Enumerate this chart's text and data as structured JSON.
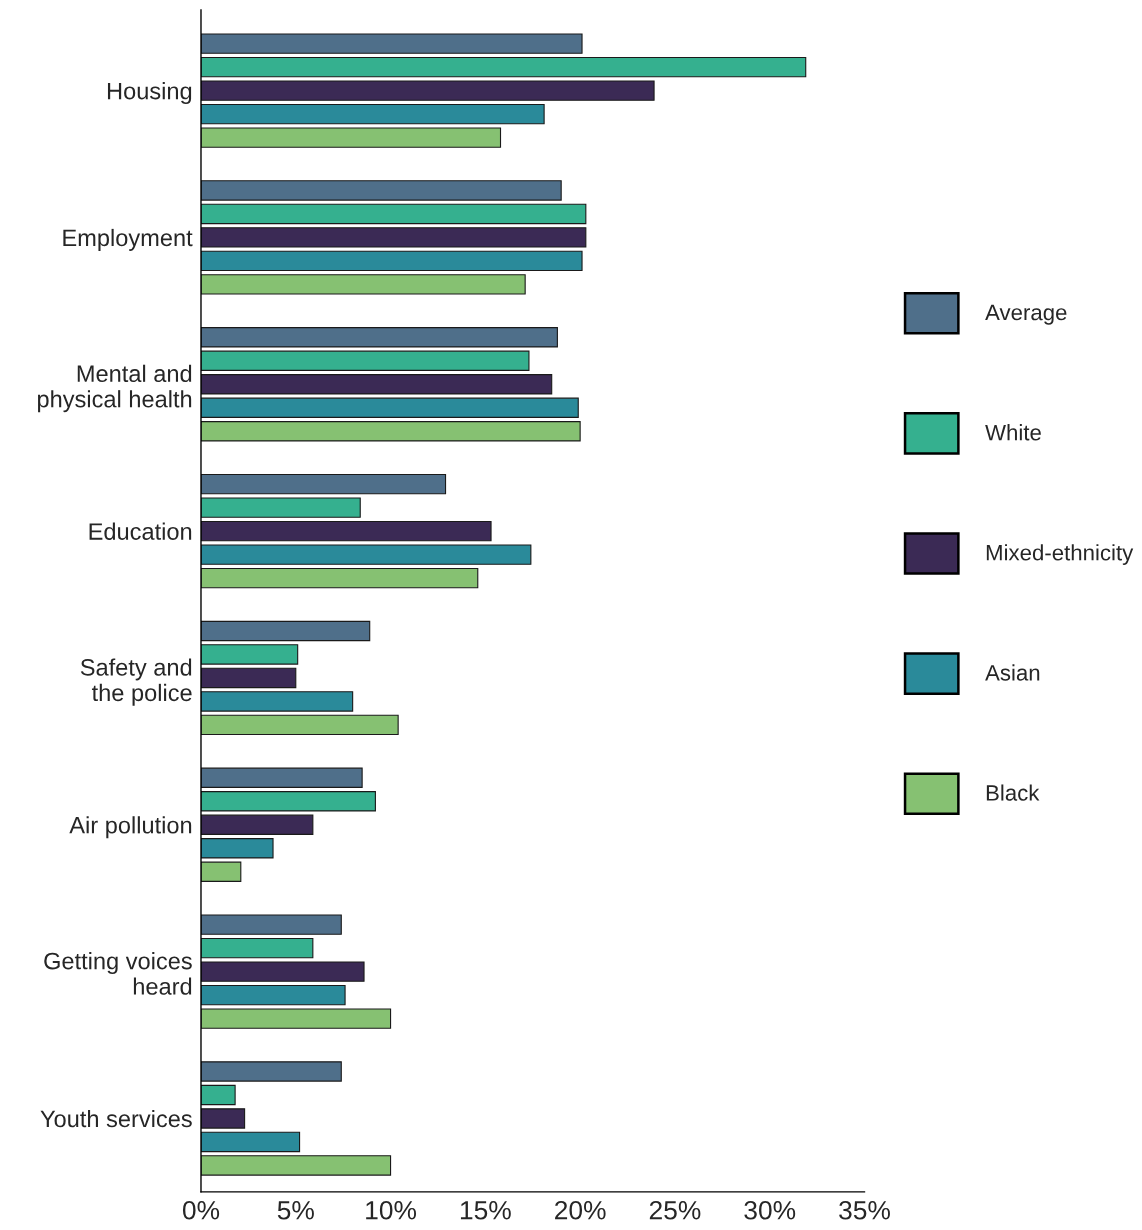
{
  "chart_data": {
    "type": "bar",
    "orientation": "horizontal",
    "categories": [
      "Housing",
      "Employment",
      "Mental and\nphysical health",
      "Education",
      "Safety and\nthe police",
      "Air pollution",
      "Getting voices\nheard",
      "Youth services"
    ],
    "series": [
      {
        "name": "Average",
        "color": "#4f6f8a",
        "values": [
          20.1,
          19.0,
          18.8,
          12.9,
          8.9,
          8.5,
          7.4,
          7.4
        ]
      },
      {
        "name": "White",
        "color": "#35b08f",
        "values": [
          31.9,
          20.3,
          17.3,
          8.4,
          5.1,
          9.2,
          5.9,
          1.8
        ]
      },
      {
        "name": "Mixed-ethnicity",
        "color": "#3b2a55",
        "values": [
          23.9,
          20.3,
          18.5,
          15.3,
          5.0,
          5.9,
          8.6,
          2.3
        ]
      },
      {
        "name": "Asian",
        "color": "#2a8a9a",
        "values": [
          18.1,
          20.1,
          19.9,
          17.4,
          8.0,
          3.8,
          7.6,
          5.2
        ]
      },
      {
        "name": "Black",
        "color": "#86c172",
        "values": [
          15.8,
          17.1,
          20.0,
          14.6,
          10.4,
          2.1,
          10.0,
          10.0
        ]
      }
    ],
    "xlim": [
      0,
      35
    ],
    "xticks": [
      {
        "value": 0,
        "label": "0%"
      },
      {
        "value": 5,
        "label": "5%"
      },
      {
        "value": 10,
        "label": "10%"
      },
      {
        "value": 15,
        "label": "15%"
      },
      {
        "value": 20,
        "label": "20%"
      },
      {
        "value": 25,
        "label": "25%"
      },
      {
        "value": 30,
        "label": "30%"
      },
      {
        "value": 35,
        "label": "35%"
      }
    ],
    "grid": false,
    "legend": "right"
  }
}
